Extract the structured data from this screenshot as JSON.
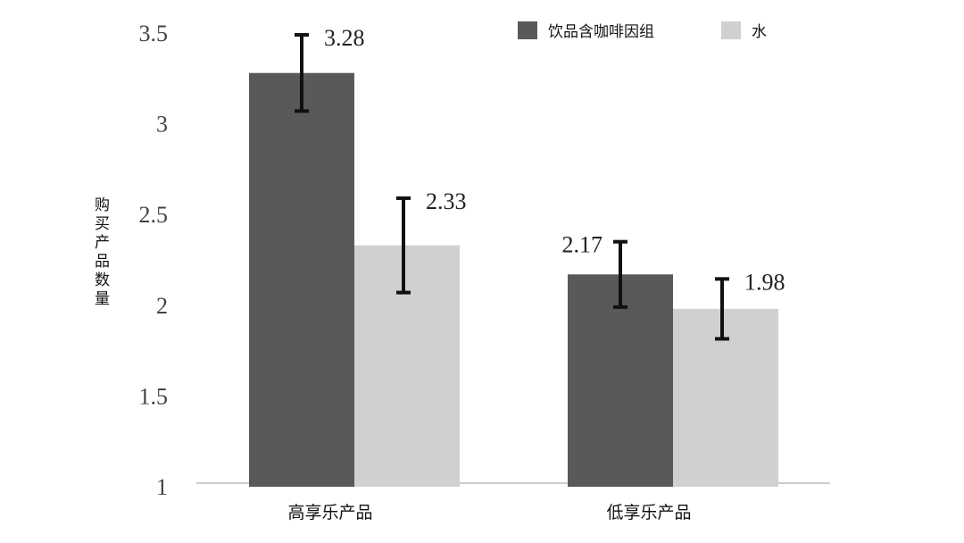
{
  "chart_data": {
    "type": "bar",
    "y_label": "购买产品数量",
    "categories": [
      "高享乐产品",
      "低享乐产品"
    ],
    "series": [
      {
        "name": "饮品含咖啡因组",
        "color": "#595959",
        "values": [
          3.28,
          2.17
        ],
        "errors": [
          0.21,
          0.18
        ]
      },
      {
        "name": "水",
        "color": "#d0d0d0",
        "values": [
          2.33,
          1.98
        ],
        "errors": [
          0.26,
          0.165
        ]
      }
    ],
    "ylim": [
      1,
      3.5
    ],
    "yticks": [
      1,
      1.5,
      2,
      2.5,
      3,
      3.5
    ],
    "grid": false
  }
}
